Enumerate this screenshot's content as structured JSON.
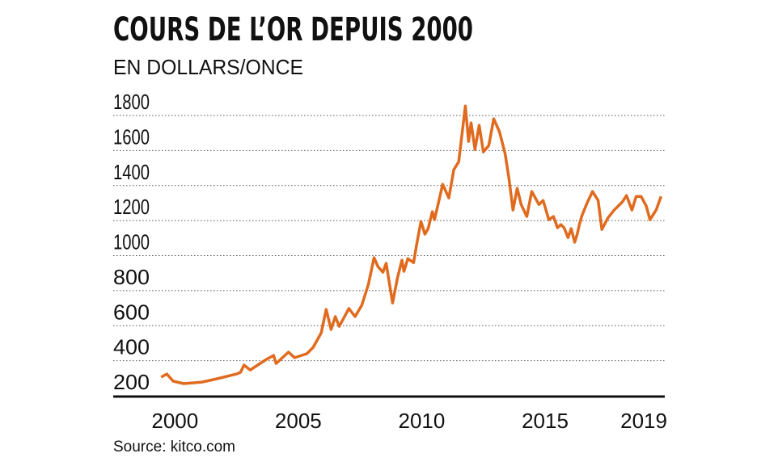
{
  "chart_data": {
    "type": "line",
    "title": "COURS DE L’OR DEPUIS 2000",
    "subtitle": "EN DOLLARS/ONCE",
    "source": "Source: kitco.com",
    "color": "#e06b1f",
    "grid": true,
    "xlim": [
      1997.5,
      2019.85
    ],
    "ylim": [
      200,
      1800
    ],
    "xticks": [
      2000,
      2005,
      2010,
      2015,
      2019
    ],
    "yticks": [
      200,
      400,
      600,
      800,
      1000,
      1200,
      1400,
      1600,
      1800
    ],
    "x": [
      1999.44,
      1999.67,
      1999.93,
      2000.36,
      2001.1,
      2001.7,
      2002.5,
      2002.66,
      2002.8,
      2003.05,
      2003.7,
      2004.0,
      2004.1,
      2004.6,
      2004.85,
      2005.35,
      2005.6,
      2005.93,
      2006.13,
      2006.33,
      2006.5,
      2006.66,
      2007.05,
      2007.3,
      2007.57,
      2007.84,
      2008.07,
      2008.23,
      2008.43,
      2008.56,
      2008.82,
      2009.02,
      2009.2,
      2009.28,
      2009.44,
      2009.67,
      2009.8,
      2009.97,
      2010.13,
      2010.26,
      2010.43,
      2010.52,
      2010.85,
      2011.1,
      2011.3,
      2011.5,
      2011.77,
      2011.9,
      2012.0,
      2012.16,
      2012.33,
      2012.5,
      2012.72,
      2012.92,
      2013.15,
      2013.38,
      2013.54,
      2013.7,
      2013.87,
      2014.03,
      2014.26,
      2014.46,
      2014.75,
      2014.92,
      2015.15,
      2015.34,
      2015.5,
      2015.64,
      2015.77,
      2015.93,
      2016.06,
      2016.2,
      2016.3,
      2016.39,
      2016.49,
      2016.69,
      2016.92,
      2017.15,
      2017.3,
      2017.54,
      2017.8,
      2018.13,
      2018.3,
      2018.52,
      2018.69,
      2018.89,
      2019.1,
      2019.25,
      2019.5,
      2019.7
    ],
    "values": [
      306,
      324,
      283,
      269,
      278,
      297,
      324,
      334,
      375,
      347,
      407,
      430,
      384,
      449,
      417,
      440,
      476,
      559,
      693,
      578,
      652,
      596,
      698,
      652,
      716,
      836,
      988,
      937,
      905,
      956,
      730,
      873,
      974,
      910,
      983,
      960,
      1066,
      1195,
      1122,
      1154,
      1251,
      1205,
      1407,
      1329,
      1490,
      1536,
      1854,
      1652,
      1758,
      1606,
      1744,
      1592,
      1629,
      1781,
      1707,
      1582,
      1435,
      1260,
      1384,
      1292,
      1223,
      1366,
      1292,
      1315,
      1205,
      1223,
      1159,
      1177,
      1159,
      1103,
      1154,
      1076,
      1122,
      1177,
      1228,
      1297,
      1366,
      1315,
      1149,
      1214,
      1260,
      1306,
      1343,
      1260,
      1338,
      1338,
      1283,
      1205,
      1260,
      1338
    ]
  }
}
